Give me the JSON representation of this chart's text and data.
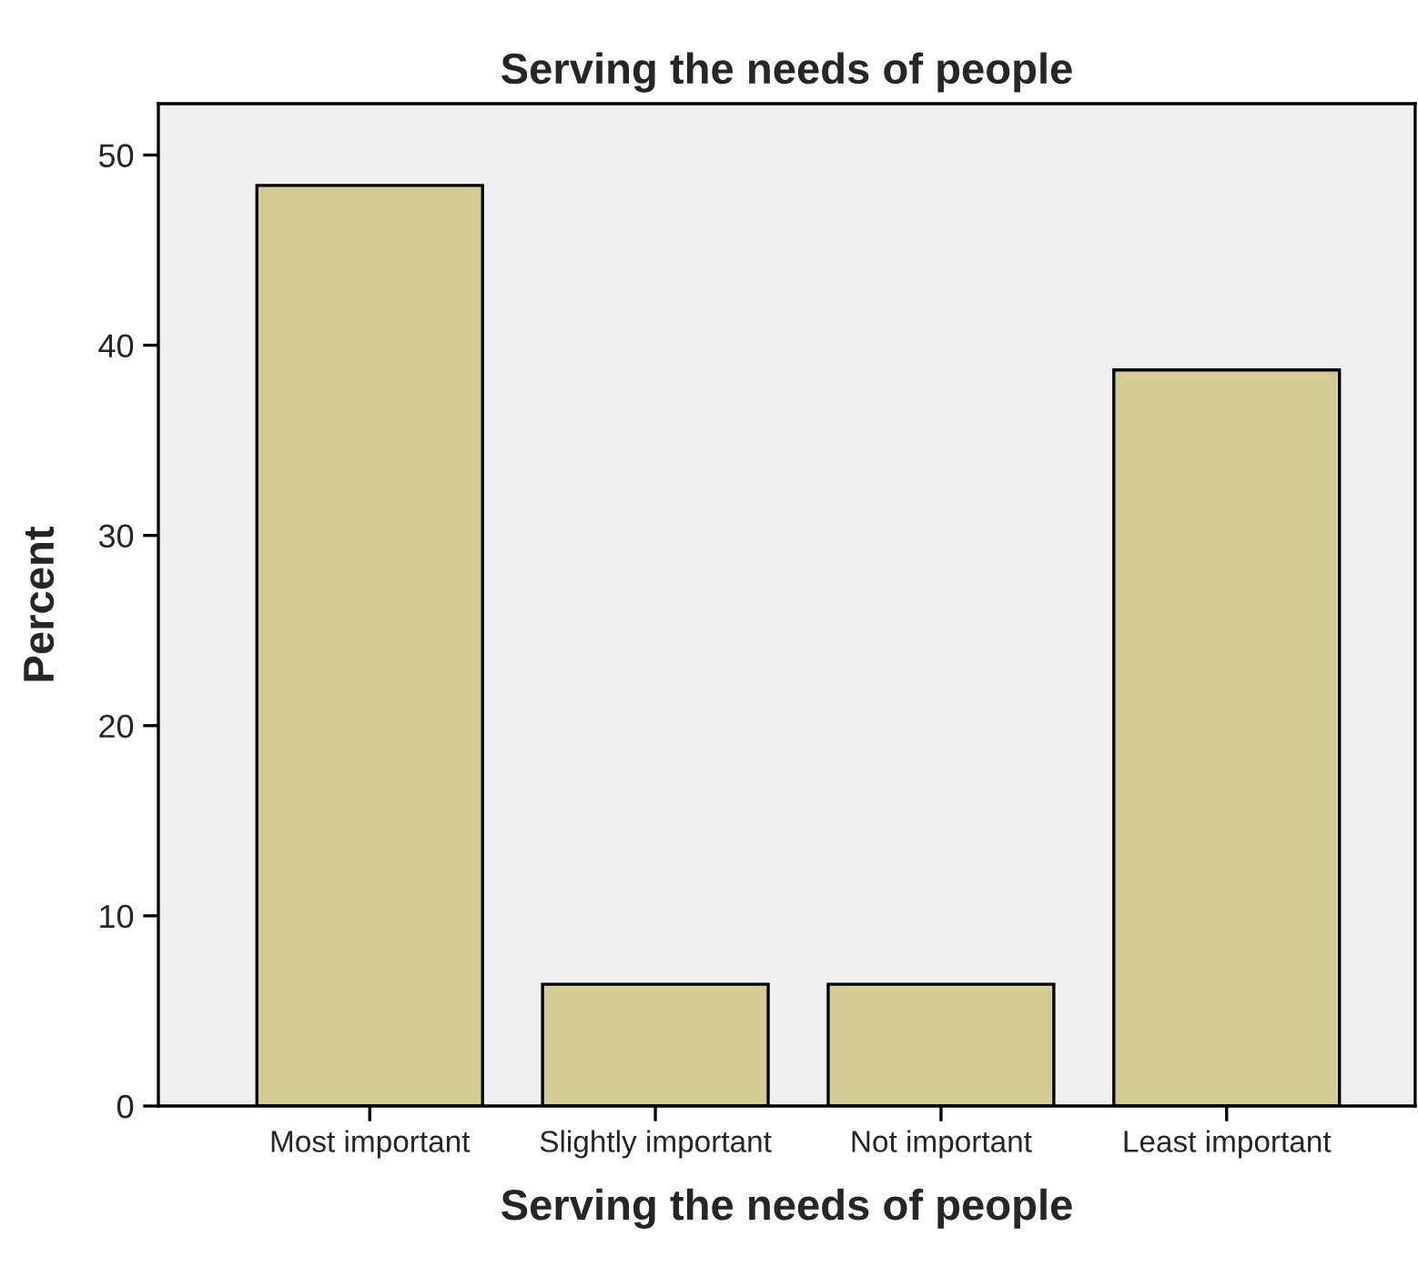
{
  "chart_data": {
    "type": "bar",
    "title": "Serving the needs of people",
    "xlabel": "Serving the needs of people",
    "ylabel": "Percent",
    "categories": [
      "Most important",
      "Slightly important",
      "Not important",
      "Least important"
    ],
    "values": [
      48.4,
      6.4,
      6.4,
      38.7
    ],
    "color": "#d3cd95",
    "ylim": [
      0,
      52.7
    ],
    "yticks": [
      0,
      10,
      20,
      30,
      40,
      50
    ],
    "grid": false
  }
}
